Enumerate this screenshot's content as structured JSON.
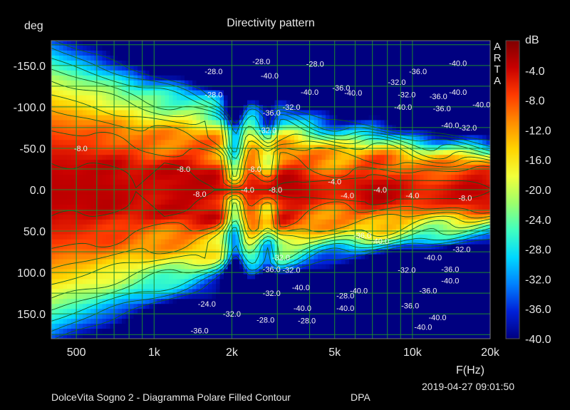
{
  "chart_data": {
    "type": "heatmap",
    "title": "Directivity pattern",
    "xlabel": "F(Hz)",
    "ylabel": "deg",
    "x_scale": "log",
    "xlim": [
      400,
      20000
    ],
    "ylim": [
      180,
      -180
    ],
    "x_ticks": [
      {
        "value": 500,
        "label": "500"
      },
      {
        "value": 1000,
        "label": "1k"
      },
      {
        "value": 2000,
        "label": "2k"
      },
      {
        "value": 5000,
        "label": "5k"
      },
      {
        "value": 10000,
        "label": "10k"
      },
      {
        "value": 20000,
        "label": "20k"
      }
    ],
    "y_ticks": [
      {
        "value": -150,
        "label": "-150.0"
      },
      {
        "value": -100,
        "label": "-100.0"
      },
      {
        "value": -50,
        "label": "-50.0"
      },
      {
        "value": 0,
        "label": "0.0"
      },
      {
        "value": 50,
        "label": "50.0"
      },
      {
        "value": 100,
        "label": "100.0"
      },
      {
        "value": 150,
        "label": "150.0"
      }
    ],
    "colorbar": {
      "label": "dB",
      "range": [
        -40,
        0
      ],
      "ticks": [
        "-4.0",
        "-8.0",
        "-12.0",
        "-16.0",
        "-20.0",
        "-24.0",
        "-28.0",
        "-32.0",
        "-36.0",
        "-40.0"
      ],
      "colors": [
        "#7f0000",
        "#c80000",
        "#ff3a00",
        "#ff8c00",
        "#ffd400",
        "#f2ff3a",
        "#9dff6b",
        "#40ffc0",
        "#00d8ff",
        "#0080ff",
        "#0020d8",
        "#000080"
      ]
    },
    "grid": true,
    "contour_levels": [
      -4,
      -8,
      -12,
      -16,
      -20,
      -24,
      -28,
      -32,
      -36,
      -40
    ],
    "contour_labels": [
      {
        "f": 520,
        "deg": -50,
        "text": "-8.0"
      },
      {
        "f": 1300,
        "deg": -25,
        "text": "-8.0"
      },
      {
        "f": 1500,
        "deg": 5,
        "text": "-8.0"
      },
      {
        "f": 2450,
        "deg": -25,
        "text": "-8.0"
      },
      {
        "f": 2300,
        "deg": 0,
        "text": "-4.0"
      },
      {
        "f": 2950,
        "deg": 0,
        "text": "-8.0"
      },
      {
        "f": 5000,
        "deg": -10,
        "text": "-4.0"
      },
      {
        "f": 5600,
        "deg": 7,
        "text": "-4.0"
      },
      {
        "f": 7500,
        "deg": 0,
        "text": "-4.0"
      },
      {
        "f": 10000,
        "deg": 7,
        "text": "-4.0"
      },
      {
        "f": 16000,
        "deg": 10,
        "text": "-8.0"
      },
      {
        "f": 1700,
        "deg": -143,
        "text": "-28.0"
      },
      {
        "f": 2600,
        "deg": -155,
        "text": "-28.0"
      },
      {
        "f": 2800,
        "deg": -138,
        "text": "-40.0"
      },
      {
        "f": 4200,
        "deg": -152,
        "text": "-28.0"
      },
      {
        "f": 2850,
        "deg": -93,
        "text": "-36.0"
      },
      {
        "f": 3400,
        "deg": -100,
        "text": "-32.0"
      },
      {
        "f": 2750,
        "deg": -72,
        "text": "-32.0"
      },
      {
        "f": 4000,
        "deg": -118,
        "text": "-40.0"
      },
      {
        "f": 5300,
        "deg": -123,
        "text": "-36.0"
      },
      {
        "f": 5900,
        "deg": -117,
        "text": "-40.0"
      },
      {
        "f": 8700,
        "deg": -130,
        "text": "-32.0"
      },
      {
        "f": 10500,
        "deg": -143,
        "text": "-36.0"
      },
      {
        "f": 9500,
        "deg": -115,
        "text": "-32.0"
      },
      {
        "f": 9200,
        "deg": -100,
        "text": "-40.0"
      },
      {
        "f": 12600,
        "deg": -113,
        "text": "-36.0"
      },
      {
        "f": 13000,
        "deg": -98,
        "text": "-36.0"
      },
      {
        "f": 15000,
        "deg": -118,
        "text": "-40.0"
      },
      {
        "f": 18500,
        "deg": -103,
        "text": "-40.0"
      },
      {
        "f": 14000,
        "deg": -78,
        "text": "-40.0"
      },
      {
        "f": 16400,
        "deg": -75,
        "text": "-32.0"
      },
      {
        "f": 15000,
        "deg": -153,
        "text": "-40.0"
      },
      {
        "f": 6400,
        "deg": 55,
        "text": "-36.0"
      },
      {
        "f": 7500,
        "deg": 62,
        "text": "-40.0"
      },
      {
        "f": 3100,
        "deg": 82,
        "text": "-32.0"
      },
      {
        "f": 2850,
        "deg": 96,
        "text": "-36.0"
      },
      {
        "f": 3400,
        "deg": 97,
        "text": "-32.0"
      },
      {
        "f": 2850,
        "deg": 125,
        "text": "-32.0"
      },
      {
        "f": 3700,
        "deg": 118,
        "text": "-40.0"
      },
      {
        "f": 5500,
        "deg": 128,
        "text": "-28.0"
      },
      {
        "f": 6200,
        "deg": 122,
        "text": "-40.0"
      },
      {
        "f": 12000,
        "deg": 82,
        "text": "-40.0"
      },
      {
        "f": 15500,
        "deg": 72,
        "text": "-32.0"
      },
      {
        "f": 9500,
        "deg": 97,
        "text": "-32.0"
      },
      {
        "f": 14000,
        "deg": 96,
        "text": "-36.0"
      },
      {
        "f": 14000,
        "deg": 110,
        "text": "-40.0"
      },
      {
        "f": 11500,
        "deg": 122,
        "text": "-36.0"
      },
      {
        "f": 9800,
        "deg": 140,
        "text": "-36.0"
      },
      {
        "f": 1600,
        "deg": 138,
        "text": "-24.0"
      },
      {
        "f": 2000,
        "deg": 150,
        "text": "-32.0"
      },
      {
        "f": 1500,
        "deg": 170,
        "text": "-36.0"
      },
      {
        "f": 2700,
        "deg": 157,
        "text": "-28.0"
      },
      {
        "f": 3900,
        "deg": 158,
        "text": "-28.0"
      },
      {
        "f": 3750,
        "deg": 143,
        "text": "-40.0"
      },
      {
        "f": 5500,
        "deg": 143,
        "text": "-40.0"
      },
      {
        "f": 12500,
        "deg": 154,
        "text": "-40.0"
      },
      {
        "f": 11000,
        "deg": 166,
        "text": "-40.0"
      },
      {
        "f": 1700,
        "deg": -115,
        "text": "-28.0"
      }
    ],
    "arta_label": "A R T A"
  },
  "footer": {
    "caption": "DolceVita Sogno 2 - Diagramma Polare Filled Contour",
    "tag": "DPA",
    "timestamp": "2019-04-27  09:01:50"
  }
}
